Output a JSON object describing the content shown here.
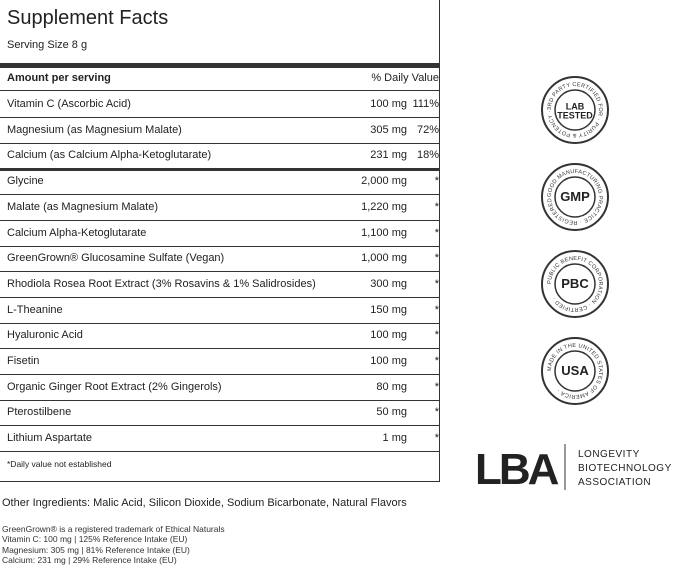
{
  "header": {
    "title": "Supplement Facts",
    "serving_size": "Serving Size 8 g"
  },
  "table": {
    "columns": [
      "Amount per serving",
      "% Daily Value"
    ],
    "rows": [
      [
        "Vitamin C (Ascorbic Acid)",
        "100 mg",
        "111%"
      ],
      [
        "Magnesium (as Magnesium Malate)",
        "305 mg",
        "72%"
      ],
      [
        "Calcium (as Calcium Alpha-Ketoglutarate)",
        "231 mg",
        "18%"
      ],
      [
        "Glycine",
        "2,000 mg",
        "*"
      ],
      [
        "Malate (as Magnesium Malate)",
        "1,220 mg",
        "*"
      ],
      [
        "Calcium Alpha-Ketoglutarate",
        "1,100 mg",
        "*"
      ],
      [
        "GreenGrown® Glucosamine Sulfate (Vegan)",
        "1,000 mg",
        "*"
      ],
      [
        "Rhodiola Rosea Root Extract (3% Rosavins & 1% Salidrosides)",
        "300 mg",
        "*"
      ],
      [
        "L-Theanine",
        "150 mg",
        "*"
      ],
      [
        "Hyaluronic Acid",
        "100 mg",
        "*"
      ],
      [
        "Fisetin",
        "100 mg",
        "*"
      ],
      [
        "Organic Ginger Root Extract (2% Gingerols)",
        "80 mg",
        "*"
      ],
      [
        "Pterostilbene",
        "50 mg",
        "*"
      ],
      [
        "Lithium Aspartate",
        "1 mg",
        "*"
      ]
    ],
    "footnote": "*Daily value not established"
  },
  "other_ingredients": "Other Ingredients: Malic Acid, Silicon Dioxide, Sodium Bicarbonate, Natural Flavors",
  "notes": [
    "GreenGrown® is a registered trademark of Ethical Naturals",
    "Vitamin C: 100 mg | 125% Reference Intake (EU)",
    "Magnesium: 305 mg | 81% Reference Intake (EU)",
    "Calcium: 231 mg | 29% Reference Intake (EU)"
  ],
  "badges": [
    {
      "label": [
        "LAB",
        "TESTED"
      ],
      "ring": "3RD PARTY CERTIFIED FOR · PURITY & POTENCY ·"
    },
    {
      "label": [
        "GMP"
      ],
      "ring": "GOOD MANUFACTURING PRACTICE · REGISTERED ·"
    },
    {
      "label": [
        "PBC"
      ],
      "ring": "PUBLIC BENEFIT CORPORATION · CERTIFIED ·"
    },
    {
      "label": [
        "USA"
      ],
      "ring": "MADE IN THE UNITED STATES OF AMERICA ·"
    }
  ],
  "logo": {
    "mark": "LBA",
    "text": [
      "LONGEVITY",
      "BIOTECHNOLOGY",
      "ASSOCIATION"
    ]
  }
}
